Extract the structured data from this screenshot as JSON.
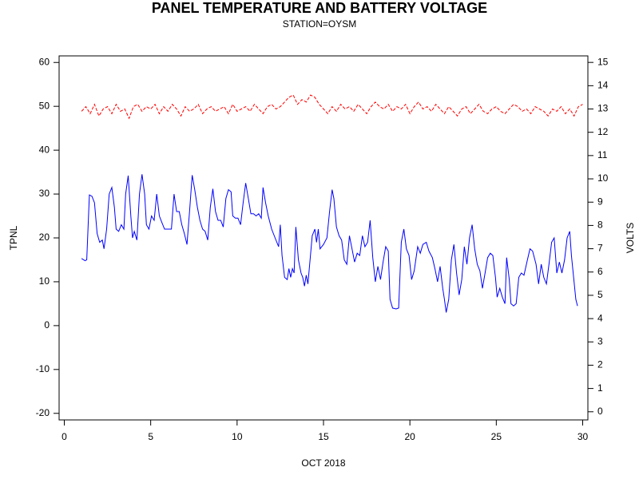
{
  "chart_data": {
    "type": "line",
    "title": "PANEL TEMPERATURE AND BATTERY VOLTAGE",
    "subtitle": "STATION=OYSM",
    "xlabel": "OCT 2018",
    "ylabel": "TPNL",
    "y2label": "VOLTS",
    "xlim": [
      -0.3,
      30.3
    ],
    "xticks": [
      0,
      5,
      10,
      15,
      20,
      25,
      30
    ],
    "ylim": [
      -21.5,
      61.5
    ],
    "yticks": [
      -20,
      -10,
      0,
      10,
      20,
      30,
      40,
      50,
      60
    ],
    "y2lim": [
      -0.35,
      15.28
    ],
    "y2ticks": [
      0,
      1,
      2,
      3,
      4,
      5,
      6,
      7,
      8,
      9,
      10,
      11,
      12,
      13,
      14,
      15
    ],
    "series": [
      {
        "color": "#0000ff",
        "axis": "y",
        "x": [
          1.0,
          1.2,
          1.3,
          1.45,
          1.6,
          1.75,
          1.9,
          2.05,
          2.2,
          2.3,
          2.45,
          2.6,
          2.75,
          2.9,
          3.0,
          3.15,
          3.3,
          3.45,
          3.55,
          3.7,
          3.85,
          3.95,
          4.05,
          4.2,
          4.35,
          4.5,
          4.65,
          4.75,
          4.9,
          5.05,
          5.2,
          5.35,
          5.5,
          5.65,
          5.8,
          6.0,
          6.2,
          6.35,
          6.5,
          6.65,
          6.8,
          6.95,
          7.1,
          7.25,
          7.4,
          7.55,
          7.7,
          7.85,
          8.0,
          8.15,
          8.3,
          8.45,
          8.6,
          8.75,
          8.9,
          9.05,
          9.2,
          9.35,
          9.5,
          9.65,
          9.75,
          9.9,
          10.05,
          10.2,
          10.35,
          10.5,
          10.65,
          10.8,
          10.95,
          11.1,
          11.25,
          11.4,
          11.5,
          11.65,
          11.8,
          12.0,
          12.2,
          12.4,
          12.5,
          12.6,
          12.75,
          12.9,
          13.0,
          13.1,
          13.2,
          13.3,
          13.4,
          13.55,
          13.7,
          13.8,
          13.9,
          14.0,
          14.1,
          14.2,
          14.35,
          14.5,
          14.6,
          14.7,
          14.8,
          15.0,
          15.2,
          15.35,
          15.5,
          15.6,
          15.75,
          15.9,
          16.05,
          16.2,
          16.35,
          16.5,
          16.65,
          16.8,
          16.95,
          17.1,
          17.25,
          17.4,
          17.55,
          17.7,
          17.85,
          18.0,
          18.15,
          18.3,
          18.45,
          18.6,
          18.75,
          18.85,
          19.0,
          19.2,
          19.35,
          19.5,
          19.65,
          19.8,
          19.95,
          20.1,
          20.25,
          20.45,
          20.6,
          20.75,
          20.95,
          21.1,
          21.3,
          21.45,
          21.6,
          21.75,
          21.9,
          22.0,
          22.1,
          22.25,
          22.4,
          22.55,
          22.7,
          22.85,
          23.0,
          23.15,
          23.3,
          23.45,
          23.6,
          23.75,
          23.9,
          24.05,
          24.2,
          24.35,
          24.5,
          24.65,
          24.8,
          24.95,
          25.05,
          25.2,
          25.35,
          25.5,
          25.6,
          25.75,
          25.85,
          26.0,
          26.15,
          26.3,
          26.45,
          26.6,
          26.8,
          26.95,
          27.1,
          27.3,
          27.45,
          27.6,
          27.75,
          27.9,
          28.05,
          28.2,
          28.35,
          28.5,
          28.65,
          28.8,
          28.95,
          29.1,
          29.25,
          29.35,
          29.5,
          29.6,
          29.7
        ],
        "values": [
          15.3,
          14.8,
          15,
          29.8,
          29.5,
          28,
          21,
          19,
          19.5,
          17.5,
          22,
          30,
          31.5,
          27,
          22,
          21.5,
          23,
          22,
          30,
          34.2,
          25,
          20,
          21.5,
          19.5,
          30,
          34.5,
          30,
          23,
          22,
          25,
          24,
          30,
          25,
          23.5,
          22,
          22,
          22,
          30,
          26,
          26,
          23,
          21,
          18.5,
          26,
          34.3,
          31,
          27,
          24,
          22,
          21.5,
          19.5,
          27,
          31.2,
          26,
          24,
          24,
          22.5,
          29,
          31,
          30.5,
          25,
          24.5,
          24.5,
          23,
          28,
          32.5,
          29,
          25.5,
          25.5,
          25,
          25.5,
          24.5,
          31.5,
          28,
          25,
          22,
          20,
          18,
          23,
          16,
          11,
          10.5,
          13,
          11,
          13,
          12,
          22.5,
          15,
          12,
          11,
          9,
          11.5,
          9.5,
          14,
          20.5,
          22,
          19,
          22,
          17.5,
          18.5,
          20,
          26,
          31,
          29,
          22.5,
          20.5,
          19.5,
          15,
          14,
          20.5,
          17.5,
          14.5,
          16.5,
          16,
          20.5,
          18,
          19,
          24,
          15.5,
          10,
          13.5,
          10.5,
          14.5,
          18,
          17,
          6,
          4,
          3.8,
          4,
          19,
          22,
          17.5,
          16,
          10.5,
          12.5,
          18,
          16.5,
          18.5,
          19,
          17,
          15.5,
          13,
          10,
          13.5,
          8.5,
          6,
          3,
          6,
          15,
          18.5,
          12,
          7,
          10.5,
          18,
          14,
          20,
          23,
          17.5,
          14,
          12.5,
          8.5,
          12,
          15.5,
          16.5,
          16,
          11,
          6.5,
          8.5,
          6.5,
          5,
          15.5,
          10.5,
          5,
          4.5,
          5,
          11,
          12,
          11.5,
          15,
          17.5,
          17,
          14,
          9.5,
          14,
          11,
          9.5,
          14,
          19,
          20,
          12,
          14.5,
          12,
          15,
          20,
          21.5,
          16,
          10,
          6,
          4.5
        ]
      },
      {
        "color": "#ff0000",
        "axis": "y2",
        "dashed": true,
        "x": [
          1,
          1.25,
          1.5,
          1.75,
          2,
          2.25,
          2.5,
          2.75,
          3,
          3.25,
          3.5,
          3.75,
          4,
          4.25,
          4.5,
          4.75,
          5,
          5.25,
          5.5,
          5.75,
          6,
          6.25,
          6.5,
          6.75,
          7,
          7.25,
          7.5,
          7.75,
          8,
          8.25,
          8.5,
          8.75,
          9,
          9.25,
          9.5,
          9.75,
          10,
          10.25,
          10.5,
          10.75,
          11,
          11.25,
          11.5,
          11.75,
          12,
          12.25,
          12.5,
          12.75,
          13,
          13.25,
          13.5,
          13.75,
          14,
          14.25,
          14.5,
          14.75,
          15,
          15.25,
          15.5,
          15.75,
          16,
          16.25,
          16.5,
          16.75,
          17,
          17.25,
          17.5,
          17.75,
          18,
          18.25,
          18.5,
          18.75,
          19,
          19.25,
          19.5,
          19.75,
          20,
          20.25,
          20.5,
          20.75,
          21,
          21.25,
          21.5,
          21.75,
          22,
          22.25,
          22.5,
          22.75,
          23,
          23.25,
          23.5,
          23.75,
          24,
          24.25,
          24.5,
          24.75,
          25,
          25.25,
          25.5,
          25.75,
          26,
          26.25,
          26.5,
          26.75,
          27,
          27.25,
          27.5,
          27.75,
          28,
          28.25,
          28.5,
          28.75,
          29,
          29.25,
          29.5,
          29.75,
          30
        ],
        "values": [
          12.9,
          13.1,
          12.8,
          13.2,
          12.7,
          13.0,
          13.1,
          12.8,
          13.2,
          12.9,
          13.0,
          12.6,
          13.1,
          13.2,
          12.9,
          13.1,
          13.0,
          13.2,
          12.8,
          13.1,
          12.9,
          13.2,
          13.0,
          12.7,
          13.1,
          12.9,
          13.0,
          13.2,
          12.8,
          13.0,
          13.1,
          12.9,
          13.0,
          13.1,
          12.8,
          13.2,
          12.9,
          13.0,
          13.1,
          12.9,
          13.2,
          13.0,
          12.8,
          13.1,
          13.2,
          13.0,
          13.1,
          13.3,
          13.5,
          13.6,
          13.2,
          13.4,
          13.3,
          13.6,
          13.5,
          13.2,
          13.0,
          12.8,
          13.1,
          12.9,
          13.2,
          13.0,
          13.1,
          12.9,
          13.2,
          13.0,
          12.8,
          13.1,
          13.3,
          13.1,
          13.0,
          13.2,
          12.9,
          13.1,
          13.0,
          13.2,
          12.8,
          13.1,
          13.3,
          13.0,
          13.1,
          12.9,
          13.2,
          13.0,
          12.8,
          13.1,
          12.9,
          12.7,
          13.0,
          13.1,
          12.8,
          13.0,
          13.2,
          12.9,
          12.8,
          13.0,
          13.1,
          12.9,
          12.8,
          13.0,
          13.2,
          13.1,
          12.9,
          13.0,
          12.8,
          13.1,
          13.0,
          12.9,
          12.7,
          13.0,
          12.9,
          13.1,
          12.8,
          13.0,
          12.7,
          13.1,
          13.2
        ]
      }
    ]
  }
}
